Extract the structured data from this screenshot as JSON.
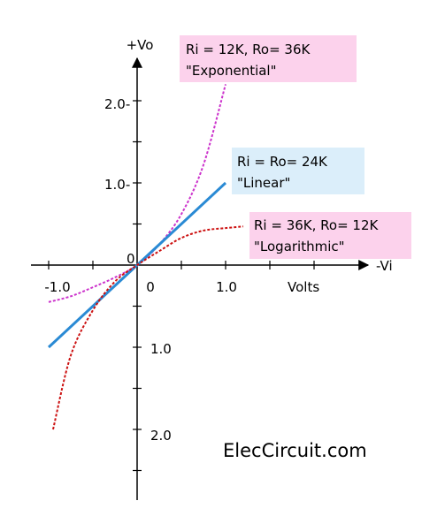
{
  "chart_data": {
    "type": "line",
    "title": "",
    "ylabel": "+Vo",
    "xlabel": "-Vi",
    "x_unit_label": "Volts",
    "origin_label": "0",
    "xlim": [
      -1.0,
      1.0
    ],
    "ylim": [
      -2.0,
      2.0
    ],
    "x_tick_labels": [
      "-1.0",
      "0",
      "1.0"
    ],
    "y_tick_labels_positive": [
      "1.0-",
      "2.0-"
    ],
    "y_tick_labels_negative": [
      "1.0",
      "2.0"
    ],
    "grid": false,
    "series": [
      {
        "key": "exponential",
        "color": "#cc33cc",
        "style": "dotted",
        "annotation": [
          "Ri = 12K, Ro= 36K",
          "\"Exponential\""
        ],
        "annotation_bg": "#fcd2ec",
        "x": [
          -1.0,
          -0.75,
          -0.5,
          -0.25,
          0.0,
          0.25,
          0.5,
          0.75,
          1.0
        ],
        "y": [
          -0.45,
          -0.38,
          -0.27,
          -0.15,
          0.0,
          0.25,
          0.62,
          1.22,
          2.2
        ]
      },
      {
        "key": "linear",
        "color": "#2a8ad4",
        "style": "solid",
        "annotation": [
          "Ri = Ro= 24K",
          "\"Linear\""
        ],
        "annotation_bg": "#dbeefa",
        "x": [
          -1.0,
          1.0
        ],
        "y": [
          -1.0,
          1.0
        ]
      },
      {
        "key": "logarithmic",
        "color": "#cc1111",
        "style": "dotted",
        "annotation": [
          "Ri = 36K, Ro= 12K",
          "\"Logarithmic\""
        ],
        "annotation_bg": "#fcd2ec",
        "x": [
          -0.95,
          -0.75,
          -0.5,
          -0.25,
          0.0,
          0.25,
          0.5,
          0.75,
          1.0,
          1.2
        ],
        "y": [
          -2.0,
          -1.1,
          -0.55,
          -0.2,
          0.0,
          0.17,
          0.33,
          0.42,
          0.45,
          0.47
        ]
      }
    ]
  },
  "watermark": "ElecCircuit.com"
}
